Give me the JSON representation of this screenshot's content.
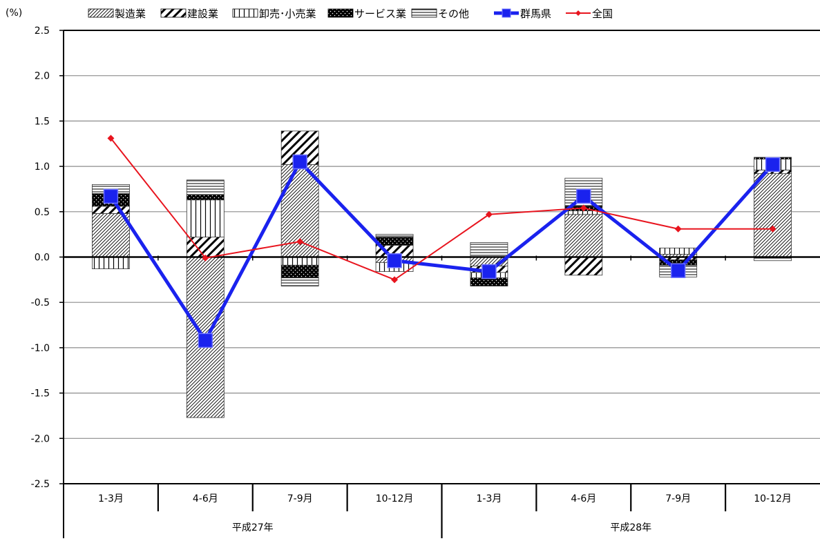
{
  "chart_data": {
    "type": "bar",
    "stacked": true,
    "unit_label": "(%)",
    "categories": [
      "1-3月",
      "4-6月",
      "7-9月",
      "10-12月",
      "1-3月",
      "4-6月",
      "7-9月",
      "10-12月"
    ],
    "groups": [
      {
        "label": "平成27年",
        "span": 4
      },
      {
        "label": "平成28年",
        "span": 4
      }
    ],
    "ylim": [
      -2.5,
      2.5
    ],
    "yticks": [
      {
        "value": 2.5,
        "label": "2.5"
      },
      {
        "value": 2.0,
        "label": "2.0"
      },
      {
        "value": 1.5,
        "label": "1.5"
      },
      {
        "value": 1.0,
        "label": "1.0"
      },
      {
        "value": 0.5,
        "label": "0.5"
      },
      {
        "value": 0.0,
        "label": "0.0"
      },
      {
        "value": -0.5,
        "label": "-0.5"
      },
      {
        "value": -1.0,
        "label": "-1.0"
      },
      {
        "value": -1.5,
        "label": "-1.5"
      },
      {
        "value": -2.0,
        "label": "-2.0"
      },
      {
        "value": -2.5,
        "label": "-2.5"
      }
    ],
    "grid": true,
    "legend_position": "top",
    "series": [
      {
        "name": "製造業",
        "kind": "bar",
        "pattern": "manufacturing",
        "values": [
          0.48,
          -1.77,
          1.02,
          -0.06,
          -0.1,
          0.47,
          0.03,
          0.92
        ]
      },
      {
        "name": "建設業",
        "kind": "bar",
        "pattern": "construction",
        "values": [
          0.08,
          0.22,
          0.37,
          0.13,
          -0.07,
          -0.2,
          -0.03,
          0.04
        ]
      },
      {
        "name": "卸売･小売業",
        "kind": "bar",
        "pattern": "trade",
        "values": [
          -0.13,
          0.41,
          -0.09,
          -0.1,
          -0.06,
          0.04,
          0.07,
          0.12
        ]
      },
      {
        "name": "サービス業",
        "kind": "bar",
        "pattern": "services",
        "values": [
          0.14,
          0.06,
          -0.14,
          0.09,
          -0.09,
          0.05,
          -0.06,
          0.02
        ]
      },
      {
        "name": "その他",
        "kind": "bar",
        "pattern": "other",
        "values": [
          0.1,
          0.16,
          -0.09,
          0.03,
          0.16,
          0.31,
          -0.13,
          -0.04
        ]
      },
      {
        "name": "群馬県",
        "kind": "line",
        "color": "#1a22ee",
        "values": [
          0.67,
          -0.92,
          1.05,
          -0.04,
          -0.16,
          0.67,
          -0.15,
          1.02
        ]
      },
      {
        "name": "全国",
        "kind": "line",
        "color": "#e8141e",
        "values": [
          1.31,
          -0.01,
          0.17,
          -0.25,
          0.47,
          0.54,
          0.31,
          0.31
        ]
      }
    ]
  }
}
